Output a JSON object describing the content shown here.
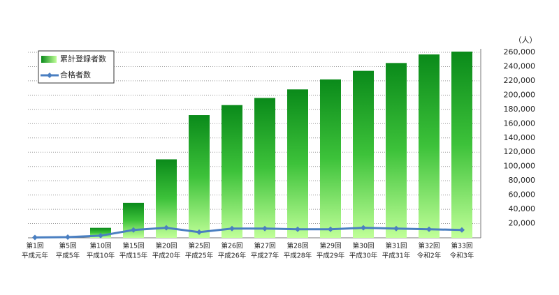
{
  "chart_data": {
    "type": "bar-line",
    "unit_label": "（人）",
    "categories": [
      [
        "第1回",
        "平成元年"
      ],
      [
        "第5回",
        "平成5年"
      ],
      [
        "第10回",
        "平成10年"
      ],
      [
        "第15回",
        "平成15年"
      ],
      [
        "第20回",
        "平成20年"
      ],
      [
        "第25回",
        "平成25年"
      ],
      [
        "第26回",
        "平成26年"
      ],
      [
        "第27回",
        "平成27年"
      ],
      [
        "第28回",
        "平成28年"
      ],
      [
        "第29回",
        "平成29年"
      ],
      [
        "第30回",
        "平成30年"
      ],
      [
        "第31回",
        "平成31年"
      ],
      [
        "第32回",
        "令和2年"
      ],
      [
        "第33回",
        "令和3年"
      ]
    ],
    "series": [
      {
        "name": "累計登録者数",
        "type": "bar",
        "color": "#1a9a2a",
        "values": [
          0,
          0,
          14000,
          49000,
          110000,
          172000,
          186000,
          196000,
          208000,
          222000,
          234000,
          245000,
          257000,
          261000
        ]
      },
      {
        "name": "合格者数",
        "type": "line",
        "color": "#4a7fc1",
        "values": [
          500,
          1000,
          3000,
          11000,
          14000,
          8000,
          13000,
          13000,
          12000,
          12000,
          14000,
          13000,
          12000,
          11000
        ]
      }
    ],
    "ylim": [
      0,
      260000
    ],
    "yticks": [
      {
        "value": 20000,
        "label": "20,000"
      },
      {
        "value": 40000,
        "label": "40,000"
      },
      {
        "value": 60000,
        "label": "60,000"
      },
      {
        "value": 80000,
        "label": "80,000"
      },
      {
        "value": 100000,
        "label": "100,000"
      },
      {
        "value": 120000,
        "label": "120,000"
      },
      {
        "value": 140000,
        "label": "140,000"
      },
      {
        "value": 160000,
        "label": "160,000"
      },
      {
        "value": 180000,
        "label": "180,000"
      },
      {
        "value": 200000,
        "label": "200,000"
      },
      {
        "value": 220000,
        "label": "220,000"
      },
      {
        "value": 240000,
        "label": "240,000"
      },
      {
        "value": 260000,
        "label": "260,000"
      }
    ],
    "grid": true
  }
}
